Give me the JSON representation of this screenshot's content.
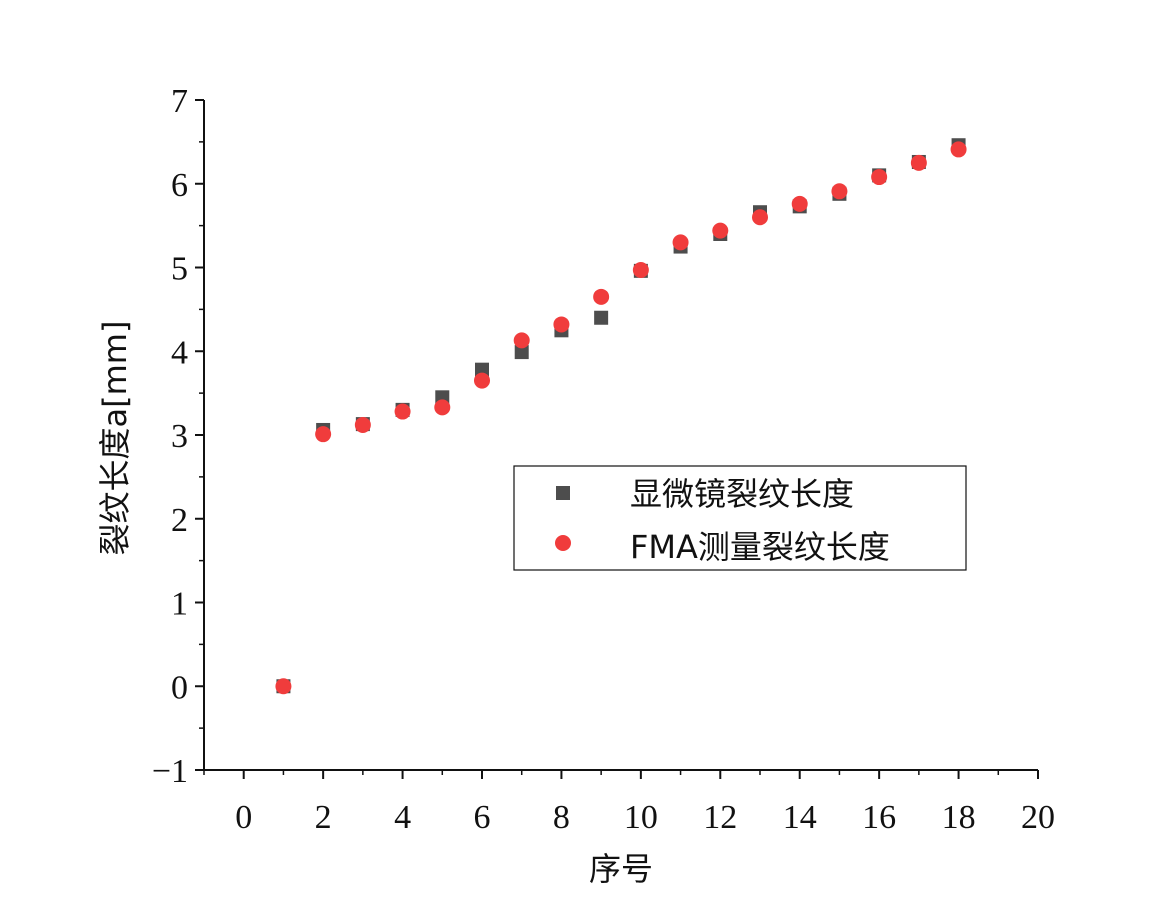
{
  "chart_data": {
    "type": "scatter",
    "xlabel": "序号",
    "ylabel": "裂纹长度a[mm]",
    "xlim": [
      -1,
      20
    ],
    "ylim": [
      -1,
      7
    ],
    "xticks": [
      "0",
      "2",
      "4",
      "6",
      "8",
      "10",
      "12",
      "14",
      "16",
      "18",
      "20"
    ],
    "yticks": [
      "-1",
      "0",
      "1",
      "2",
      "3",
      "4",
      "5",
      "6",
      "7"
    ],
    "xtick_values": [
      0,
      2,
      4,
      6,
      8,
      10,
      12,
      14,
      16,
      18,
      20
    ],
    "ytick_values": [
      -1,
      0,
      1,
      2,
      3,
      4,
      5,
      6,
      7
    ],
    "grid": false,
    "legend_position": "center-right",
    "series": [
      {
        "name": "显微镜裂纹长度",
        "marker": "square",
        "color": "#4d4d4d",
        "x": [
          1,
          2,
          3,
          4,
          5,
          6,
          7,
          8,
          9,
          10,
          11,
          12,
          13,
          14,
          15,
          16,
          17,
          18
        ],
        "y": [
          0,
          3.06,
          3.13,
          3.3,
          3.45,
          3.78,
          3.99,
          4.25,
          4.4,
          4.96,
          5.25,
          5.4,
          5.66,
          5.73,
          5.88,
          6.1,
          6.26,
          6.46
        ]
      },
      {
        "name": "FMA测量裂纹长度",
        "marker": "circle",
        "color": "#f03c3c",
        "x": [
          1,
          2,
          3,
          4,
          5,
          6,
          7,
          8,
          9,
          10,
          11,
          12,
          13,
          14,
          15,
          16,
          17,
          18
        ],
        "y": [
          0,
          3.01,
          3.12,
          3.28,
          3.33,
          3.65,
          4.13,
          4.32,
          4.65,
          4.97,
          5.3,
          5.44,
          5.6,
          5.76,
          5.91,
          6.08,
          6.25,
          6.41
        ]
      }
    ]
  }
}
